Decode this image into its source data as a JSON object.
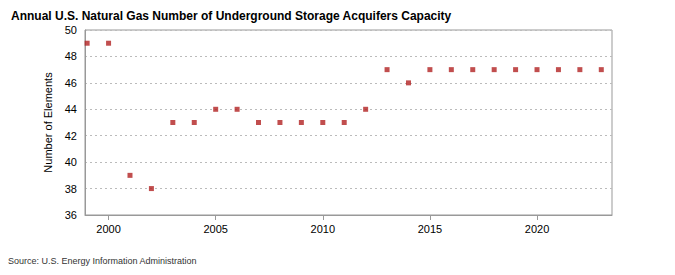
{
  "chart_data": {
    "type": "scatter",
    "title": "Annual U.S. Natural Gas Number of Underground Storage Acquifers Capacity",
    "ylabel": "Number of Elements",
    "source": "Source: U.S. Energy Information Administration",
    "x": [
      1999,
      2000,
      2001,
      2002,
      2003,
      2004,
      2005,
      2006,
      2007,
      2008,
      2009,
      2010,
      2011,
      2012,
      2013,
      2014,
      2015,
      2016,
      2017,
      2018,
      2019,
      2020,
      2021,
      2022,
      2023
    ],
    "values": [
      49,
      49,
      39,
      38,
      43,
      43,
      44,
      44,
      43,
      43,
      43,
      43,
      43,
      44,
      47,
      46,
      47,
      47,
      47,
      47,
      47,
      47,
      47,
      47,
      47
    ],
    "color": "#b22222",
    "marker": "square",
    "xlim": [
      1998.9,
      2023.5
    ],
    "xticks": [
      2000,
      2005,
      2010,
      2015,
      2020
    ],
    "ylim": [
      36,
      50
    ],
    "yticks": [
      36,
      38,
      40,
      42,
      44,
      46,
      48,
      50
    ],
    "grid": true
  }
}
